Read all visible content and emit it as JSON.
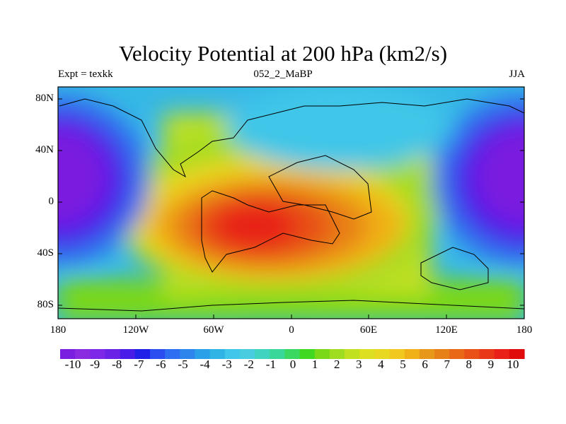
{
  "title": "Velocity Potential at 200 hPa (km2/s)",
  "subtitle_left": "Expt = texkk",
  "subtitle_center": "052_2_MaBP",
  "subtitle_right": "JJA",
  "lat_labels": [
    "80N",
    "40N",
    "0",
    "40S",
    "80S"
  ],
  "lon_labels": [
    "180",
    "120W",
    "60W",
    "0",
    "60E",
    "120E",
    "180"
  ],
  "colorbar": {
    "labels": [
      "-10",
      "-9",
      "-8",
      "-7",
      "-6",
      "-5",
      "-4",
      "-3",
      "-2",
      "-1",
      "0",
      "1",
      "2",
      "3",
      "4",
      "5",
      "6",
      "7",
      "8",
      "9",
      "10"
    ],
    "colors": [
      "#7a1ee0",
      "#8a2be2",
      "#7d28e8",
      "#6a22e6",
      "#4a1ce8",
      "#2020e8",
      "#2a4ef0",
      "#2e6ef0",
      "#2e86ec",
      "#2aa0e8",
      "#30b4e6",
      "#40c6e8",
      "#48cce0",
      "#40d4c0",
      "#3ad898",
      "#3ad860",
      "#40d820",
      "#7ad818",
      "#a0dc20",
      "#c0e020",
      "#dce020",
      "#e8d820",
      "#f0c820",
      "#f0b018",
      "#e89818",
      "#e88018",
      "#e86818",
      "#e85018",
      "#e83818",
      "#e82018",
      "#e00c0c"
    ],
    "min": -10,
    "max": 10
  },
  "chart_data": {
    "type": "heatmap",
    "title": "Velocity Potential at 200 hPa (km2/s)",
    "units": "km2/s",
    "x_range": [
      -180,
      180
    ],
    "y_range": [
      -90,
      90
    ],
    "value_range": [
      -10,
      10
    ],
    "features": [
      {
        "desc": "maximum over South Atlantic/Africa",
        "lon": -35,
        "lat": -25,
        "value": 10
      },
      {
        "desc": "minimum over western Pacific",
        "lon": 170,
        "lat": 30,
        "value": -10
      },
      {
        "desc": "minimum over eastern Pacific",
        "lon": -175,
        "lat": 30,
        "value": -10
      }
    ]
  }
}
